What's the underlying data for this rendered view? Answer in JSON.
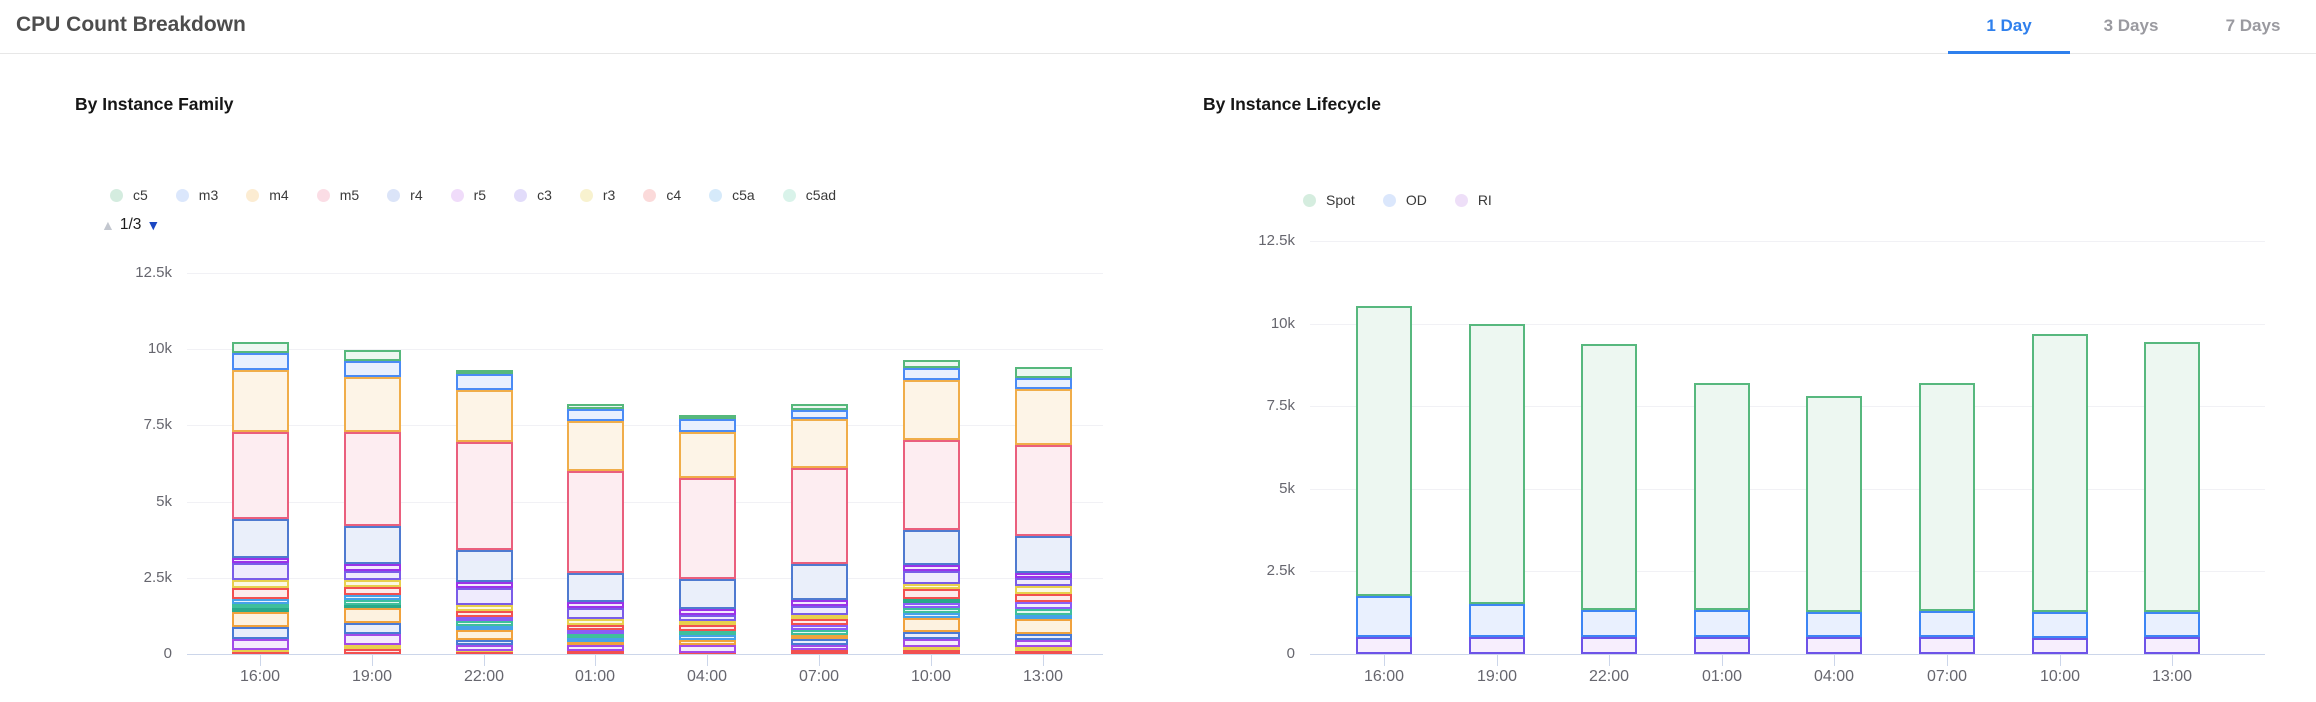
{
  "header": {
    "title": "CPU Count Breakdown",
    "accent_color": "#2f80ed",
    "tabs": [
      {
        "label": "1 Day",
        "active": true
      },
      {
        "label": "3 Days",
        "active": false
      },
      {
        "label": "7 Days",
        "active": false
      }
    ]
  },
  "chart_data": [
    {
      "type": "bar",
      "stacked": true,
      "title": "By Instance Family",
      "ylim": [
        0,
        12500
      ],
      "grid": true,
      "legend_position": "top",
      "yticks": [
        {
          "value": 0,
          "label": "0"
        },
        {
          "value": 2500,
          "label": "2.5k"
        },
        {
          "value": 5000,
          "label": "5k"
        },
        {
          "value": 7500,
          "label": "7.5k"
        },
        {
          "value": 10000,
          "label": "10k"
        },
        {
          "value": 12500,
          "label": "12.5k"
        }
      ],
      "legend": [
        {
          "label": "c5",
          "key": "c5"
        },
        {
          "label": "m3",
          "key": "m3"
        },
        {
          "label": "m4",
          "key": "m4"
        },
        {
          "label": "m5",
          "key": "m5"
        },
        {
          "label": "r4",
          "key": "r4"
        },
        {
          "label": "r5",
          "key": "r5"
        },
        {
          "label": "c3",
          "key": "c3"
        },
        {
          "label": "r3",
          "key": "r3"
        },
        {
          "label": "c4",
          "key": "c4"
        },
        {
          "label": "c5a",
          "key": "c5a"
        },
        {
          "label": "c5ad",
          "key": "c5ad"
        }
      ],
      "legend_pager": {
        "label": "1/3",
        "up_enabled": false,
        "down_enabled": true,
        "up_color": "#c3c7cf",
        "down_color": "#1b47c2"
      },
      "palette": {
        "c5": {
          "stroke": "#56b87c",
          "fill": "#edf7f1",
          "swatch": "#d4ecdf"
        },
        "m3": {
          "stroke": "#4b8bf4",
          "fill": "#e9f0fe",
          "swatch": "#dbe7fc"
        },
        "m4": {
          "stroke": "#f0ad4a",
          "fill": "#fdf4e7",
          "swatch": "#fcecd2"
        },
        "m5": {
          "stroke": "#ea5f7d",
          "fill": "#fdedf1",
          "swatch": "#fbdde5"
        },
        "r4": {
          "stroke": "#4f7ad0",
          "fill": "#eaeffa",
          "swatch": "#dbe4f8"
        },
        "r5": {
          "stroke": "#9a33e8",
          "fill": "#f4e8fd",
          "swatch": "#f0dcfa"
        },
        "c3": {
          "stroke": "#7a5ce8",
          "fill": "#efebfd",
          "swatch": "#e2dcfa"
        },
        "r3": {
          "stroke": "#e7d04d",
          "fill": "#fcf9e2",
          "swatch": "#f8f2cf"
        },
        "c4": {
          "stroke": "#f25050",
          "fill": "#fdebeb",
          "swatch": "#fbdada"
        },
        "c5a": {
          "stroke": "#46a2e8",
          "fill": "#e8f3fd",
          "swatch": "#d6eafa"
        },
        "c5ad": {
          "stroke": "#3fbf9c",
          "fill": "#e7f8f2",
          "swatch": "#d9f3ea"
        },
        "o2": {
          "stroke": "#f0a23d",
          "fill": "#fdf2e0",
          "swatch": "#fceacb"
        },
        "b2": {
          "stroke": "#4a7ad4",
          "fill": "#e9eefb",
          "swatch": "#dbe3f8"
        },
        "p2": {
          "stroke": "#a34ae8",
          "fill": "#f5ebfd",
          "swatch": "#ecdcfa"
        },
        "y2": {
          "stroke": "#e7d04d",
          "fill": "#fcf9e2",
          "swatch": "#f8f2cf"
        },
        "r2": {
          "stroke": "#f25050",
          "fill": "#fdebeb",
          "swatch": "#fbdada"
        },
        "t2": {
          "stroke": "#2aa98a",
          "fill": "#e5f6f0",
          "swatch": "#d2eee5"
        },
        "v2": {
          "stroke": "#8b5cf6",
          "fill": "#f1ecfe",
          "swatch": "#e6dcfc"
        }
      },
      "categories": [
        "16:00",
        "19:00",
        "22:00",
        "01:00",
        "04:00",
        "07:00",
        "10:00",
        "13:00"
      ],
      "bars": [
        {
          "category": "16:00",
          "total": 10240,
          "segments": [
            [
              "r2",
              50
            ],
            [
              "y2",
              70
            ],
            [
              "p2",
              380
            ],
            [
              "b2",
              390
            ],
            [
              "o2",
              490
            ],
            [
              "t2",
              130
            ],
            [
              "c5ad",
              140
            ],
            [
              "c5a",
              170
            ],
            [
              "c4",
              330
            ],
            [
              "r3",
              270
            ],
            [
              "c3",
              580
            ],
            [
              "r5",
              140
            ],
            [
              "r4",
              1290
            ],
            [
              "m5",
              2870
            ],
            [
              "m4",
              2030
            ],
            [
              "m3",
              550
            ],
            [
              "c5",
              360
            ]
          ]
        },
        {
          "category": "19:00",
          "total": 9960,
          "segments": [
            [
              "r2",
              170
            ],
            [
              "y2",
              120
            ],
            [
              "p2",
              380
            ],
            [
              "b2",
              360
            ],
            [
              "o2",
              470
            ],
            [
              "t2",
              120
            ],
            [
              "c5ad",
              140
            ],
            [
              "c5a",
              170
            ],
            [
              "c4",
              270
            ],
            [
              "r3",
              220
            ],
            [
              "c3",
              300
            ],
            [
              "r5",
              220
            ],
            [
              "r4",
              1260
            ],
            [
              "m5",
              3100
            ],
            [
              "m4",
              1780
            ],
            [
              "m3",
              520
            ],
            [
              "c5",
              360
            ]
          ]
        },
        {
          "category": "22:00",
          "total": 9310,
          "segments": [
            [
              "r2",
              50
            ],
            [
              "y2",
              40
            ],
            [
              "p2",
              220
            ],
            [
              "b2",
              140
            ],
            [
              "o2",
              330
            ],
            [
              "c5a",
              150
            ],
            [
              "c5ad",
              140
            ],
            [
              "v2",
              150
            ],
            [
              "c4",
              180
            ],
            [
              "r3",
              200
            ],
            [
              "c3",
              570
            ],
            [
              "r5",
              200
            ],
            [
              "r4",
              1030
            ],
            [
              "m5",
              3570
            ],
            [
              "m4",
              1690
            ],
            [
              "m3",
              540
            ],
            [
              "c5",
              110
            ]
          ]
        },
        {
          "category": "01:00",
          "total": 8200,
          "segments": [
            [
              "r2",
              100
            ],
            [
              "p2",
              190
            ],
            [
              "o2",
              100
            ],
            [
              "c5a",
              140
            ],
            [
              "c5ad",
              130
            ],
            [
              "v2",
              120
            ],
            [
              "c4",
              160
            ],
            [
              "r3",
              200
            ],
            [
              "c3",
              370
            ],
            [
              "r5",
              200
            ],
            [
              "r4",
              960
            ],
            [
              "m5",
              3320
            ],
            [
              "m4",
              1640
            ],
            [
              "m3",
              420
            ],
            [
              "c5",
              150
            ]
          ]
        },
        {
          "category": "04:00",
          "total": 7850,
          "segments": [
            [
              "r2",
              40
            ],
            [
              "p2",
              250
            ],
            [
              "o2",
              160
            ],
            [
              "c5a",
              160
            ],
            [
              "c5ad",
              140
            ],
            [
              "c4",
              190
            ],
            [
              "r3",
              140
            ],
            [
              "c3",
              190
            ],
            [
              "r5",
              200
            ],
            [
              "r4",
              990
            ],
            [
              "m5",
              3330
            ],
            [
              "m4",
              1490
            ],
            [
              "m3",
              440
            ],
            [
              "c5",
              130
            ]
          ]
        },
        {
          "category": "07:00",
          "total": 8200,
          "segments": [
            [
              "r2",
              120
            ],
            [
              "p2",
              190
            ],
            [
              "b2",
              170
            ],
            [
              "o2",
              160
            ],
            [
              "c5ad",
              140
            ],
            [
              "v2",
              160
            ],
            [
              "c4",
              200
            ],
            [
              "r3",
              130
            ],
            [
              "c3",
              310
            ],
            [
              "r5",
              190
            ],
            [
              "r4",
              1170
            ],
            [
              "m5",
              3150
            ],
            [
              "m4",
              1630
            ],
            [
              "m3",
              290
            ],
            [
              "c5",
              190
            ]
          ]
        },
        {
          "category": "10:00",
          "total": 9660,
          "segments": [
            [
              "r2",
              120
            ],
            [
              "y2",
              110
            ],
            [
              "p2",
              270
            ],
            [
              "b2",
              220
            ],
            [
              "o2",
              460
            ],
            [
              "c5a",
              170
            ],
            [
              "c5ad",
              160
            ],
            [
              "v2",
              180
            ],
            [
              "t2",
              130
            ],
            [
              "c4",
              310
            ],
            [
              "r3",
              180
            ],
            [
              "c3",
              410
            ],
            [
              "r5",
              200
            ],
            [
              "r4",
              1150
            ],
            [
              "m5",
              2960
            ],
            [
              "m4",
              1970
            ],
            [
              "m3",
              370
            ],
            [
              "c5",
              290
            ]
          ]
        },
        {
          "category": "13:00",
          "total": 9410,
          "segments": [
            [
              "r2",
              100
            ],
            [
              "y2",
              130
            ],
            [
              "p2",
              220
            ],
            [
              "b2",
              220
            ],
            [
              "o2",
              470
            ],
            [
              "c5a",
              130
            ],
            [
              "c5ad",
              200
            ],
            [
              "v2",
              240
            ],
            [
              "c4",
              270
            ],
            [
              "r3",
              260
            ],
            [
              "c3",
              240
            ],
            [
              "r5",
              190
            ],
            [
              "r4",
              1210
            ],
            [
              "m5",
              2980
            ],
            [
              "m4",
              1850
            ],
            [
              "m3",
              350
            ],
            [
              "c5",
              350
            ]
          ]
        }
      ]
    },
    {
      "type": "bar",
      "stacked": true,
      "title": "By Instance Lifecycle",
      "ylim": [
        0,
        12500
      ],
      "grid": true,
      "legend_position": "top",
      "yticks": [
        {
          "value": 0,
          "label": "0"
        },
        {
          "value": 2500,
          "label": "2.5k"
        },
        {
          "value": 5000,
          "label": "5k"
        },
        {
          "value": 7500,
          "label": "7.5k"
        },
        {
          "value": 10000,
          "label": "10k"
        },
        {
          "value": 12500,
          "label": "12.5k"
        }
      ],
      "legend": [
        {
          "label": "Spot",
          "key": "spot"
        },
        {
          "label": "OD",
          "key": "od"
        },
        {
          "label": "RI",
          "key": "ri"
        }
      ],
      "palette": {
        "spot": {
          "stroke": "#57b87e",
          "fill": "#edf7f1",
          "swatch": "#d5eddf"
        },
        "od": {
          "stroke": "#3d85f4",
          "fill": "#e9f0fe",
          "swatch": "#dbe7fc"
        },
        "ri": {
          "stroke": "#6d53e8",
          "fill": "#f7eefd",
          "swatch": "#eedff8"
        }
      },
      "categories": [
        "16:00",
        "19:00",
        "22:00",
        "01:00",
        "04:00",
        "07:00",
        "10:00",
        "13:00"
      ],
      "series": [
        {
          "name": "RI",
          "key": "ri",
          "values": [
            520,
            520,
            520,
            520,
            520,
            520,
            470,
            500
          ]
        },
        {
          "name": "OD",
          "key": "od",
          "values": [
            1250,
            1000,
            800,
            810,
            760,
            780,
            810,
            780
          ]
        },
        {
          "name": "Spot",
          "key": "spot",
          "values": [
            8760,
            8480,
            8050,
            6870,
            6520,
            6900,
            8420,
            8170
          ]
        }
      ],
      "totals": [
        10530,
        10000,
        9370,
        8200,
        7800,
        8200,
        9700,
        9450
      ]
    }
  ]
}
